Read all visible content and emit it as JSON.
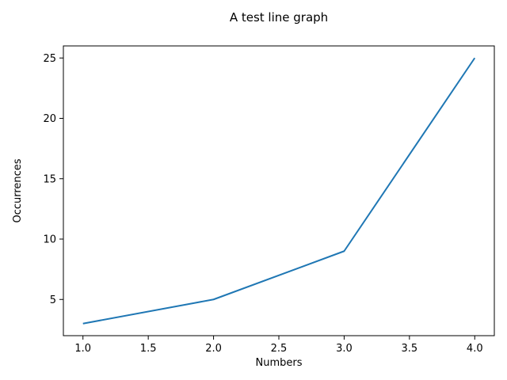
{
  "chart_data": {
    "type": "line",
    "title": "A test line graph",
    "xlabel": "Numbers",
    "ylabel": "Occurrences",
    "xlim": [
      0.85,
      4.15
    ],
    "ylim": [
      2.0,
      26.0
    ],
    "x_ticks": [
      1.0,
      1.5,
      2.0,
      2.5,
      3.0,
      3.5,
      4.0
    ],
    "x_tick_labels": [
      "1.0",
      "1.5",
      "2.0",
      "2.5",
      "3.0",
      "3.5",
      "4.0"
    ],
    "y_ticks": [
      5,
      10,
      15,
      20,
      25
    ],
    "y_tick_labels": [
      "5",
      "10",
      "15",
      "20",
      "25"
    ],
    "grid": false,
    "legend": null,
    "series": [
      {
        "color": "#1f77b4",
        "x": [
          1.0,
          2.0,
          3.0,
          4.0
        ],
        "y": [
          3,
          5,
          9,
          25
        ]
      }
    ]
  }
}
